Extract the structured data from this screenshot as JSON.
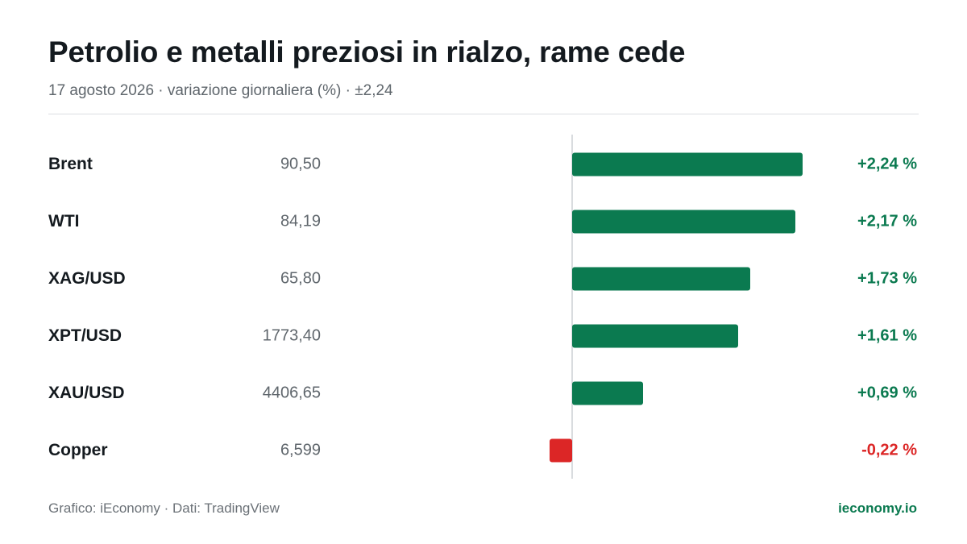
{
  "header": {
    "title": "Petrolio e metalli preziosi in rialzo, rame cede",
    "subtitle": "17 agosto 2026 · variazione giornaliera (%) · ±2,24"
  },
  "footer": {
    "source": "Grafico: iEconomy · Dati: TradingView",
    "brand": "ieconomy.io"
  },
  "colors": {
    "positive": "#0b7a50",
    "negative": "#dc2626"
  },
  "chart_data": {
    "type": "bar",
    "orientation": "horizontal",
    "title": "Petrolio e metalli preziosi in rialzo, rame cede",
    "subtitle": "17 agosto 2026 · variazione giornaliera (%) · ±2,24",
    "xlim": [
      -2.24,
      2.24
    ],
    "grid": false,
    "categories": [
      "Brent",
      "WTI",
      "XAG/USD",
      "XPT/USD",
      "XAU/USD",
      "Copper"
    ],
    "prices": [
      "90,50",
      "84,19",
      "65,80",
      "1773,40",
      "4406,65",
      "6,599"
    ],
    "values": [
      2.24,
      2.17,
      1.73,
      1.61,
      0.69,
      -0.22
    ],
    "value_labels": [
      "+2,24 %",
      "+2,17 %",
      "+1,73 %",
      "+1,61 %",
      "+0,69 %",
      "-0,22 %"
    ]
  }
}
